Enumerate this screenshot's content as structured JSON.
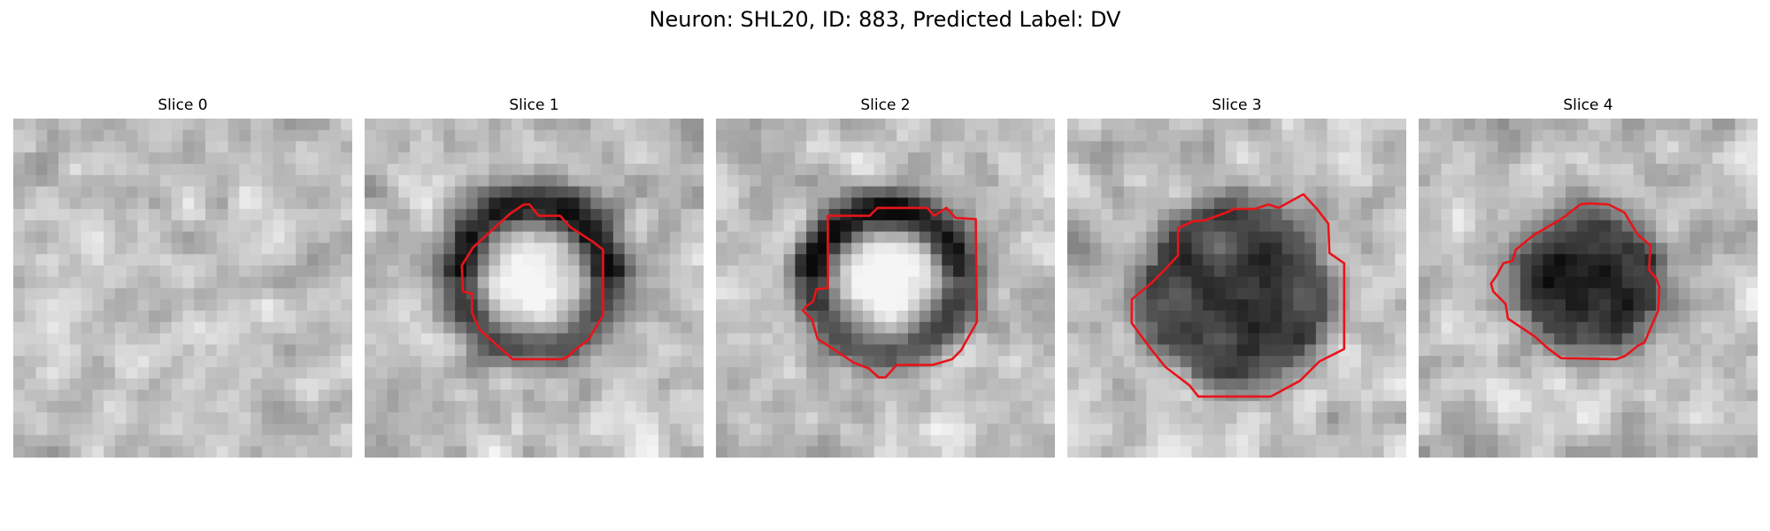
{
  "figure": {
    "title": "Neuron: SHL20, ID: 883, Predicted Label: DV"
  },
  "panels": [
    {
      "label": "Slice 0",
      "has_outline": false,
      "image_description_seed": 11
    },
    {
      "label": "Slice 1",
      "has_outline": true,
      "image_description_seed": 23
    },
    {
      "label": "Slice 2",
      "has_outline": true,
      "image_description_seed": 37
    },
    {
      "label": "Slice 3",
      "has_outline": true,
      "image_description_seed": 51
    },
    {
      "label": "Slice 4",
      "has_outline": true,
      "image_description_seed": 67
    }
  ],
  "colors": {
    "outline": "#e8141a",
    "background": "#ffffff"
  },
  "image_grid_cells": 30
}
